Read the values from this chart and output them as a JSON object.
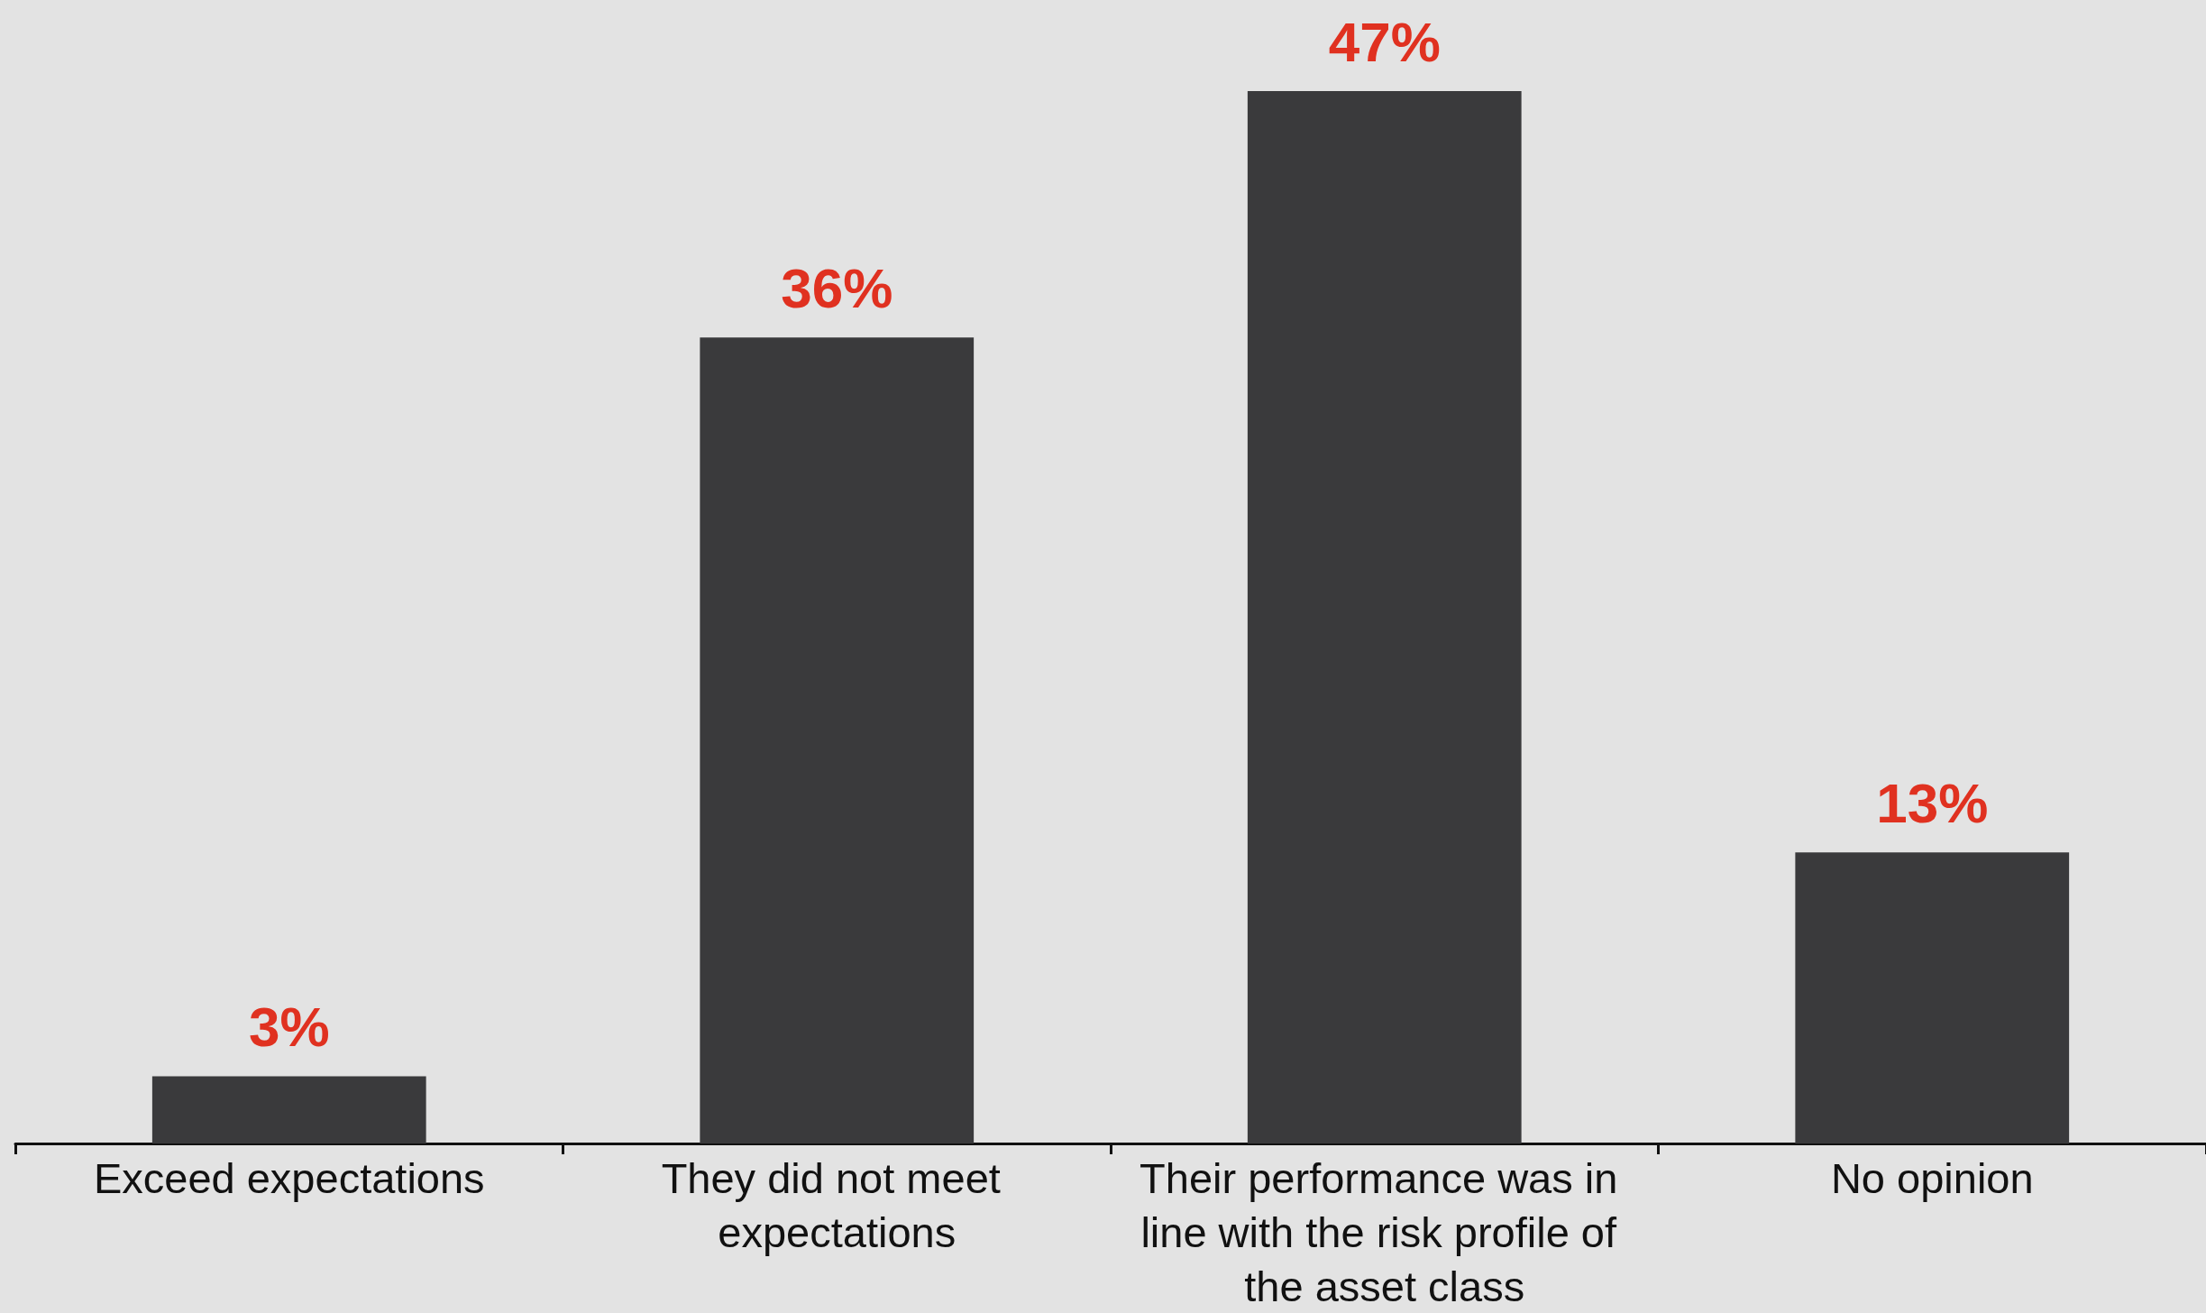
{
  "chart_data": {
    "type": "bar",
    "categories": [
      "Exceed expectations",
      "They did not meet expectations",
      "Their performance was in line with the risk profile of the asset class",
      "No opinion"
    ],
    "values": [
      3,
      36,
      47,
      13
    ],
    "value_labels": [
      "3%",
      "36%",
      "47%",
      "13%"
    ],
    "color": "#3a3a3c"
  }
}
